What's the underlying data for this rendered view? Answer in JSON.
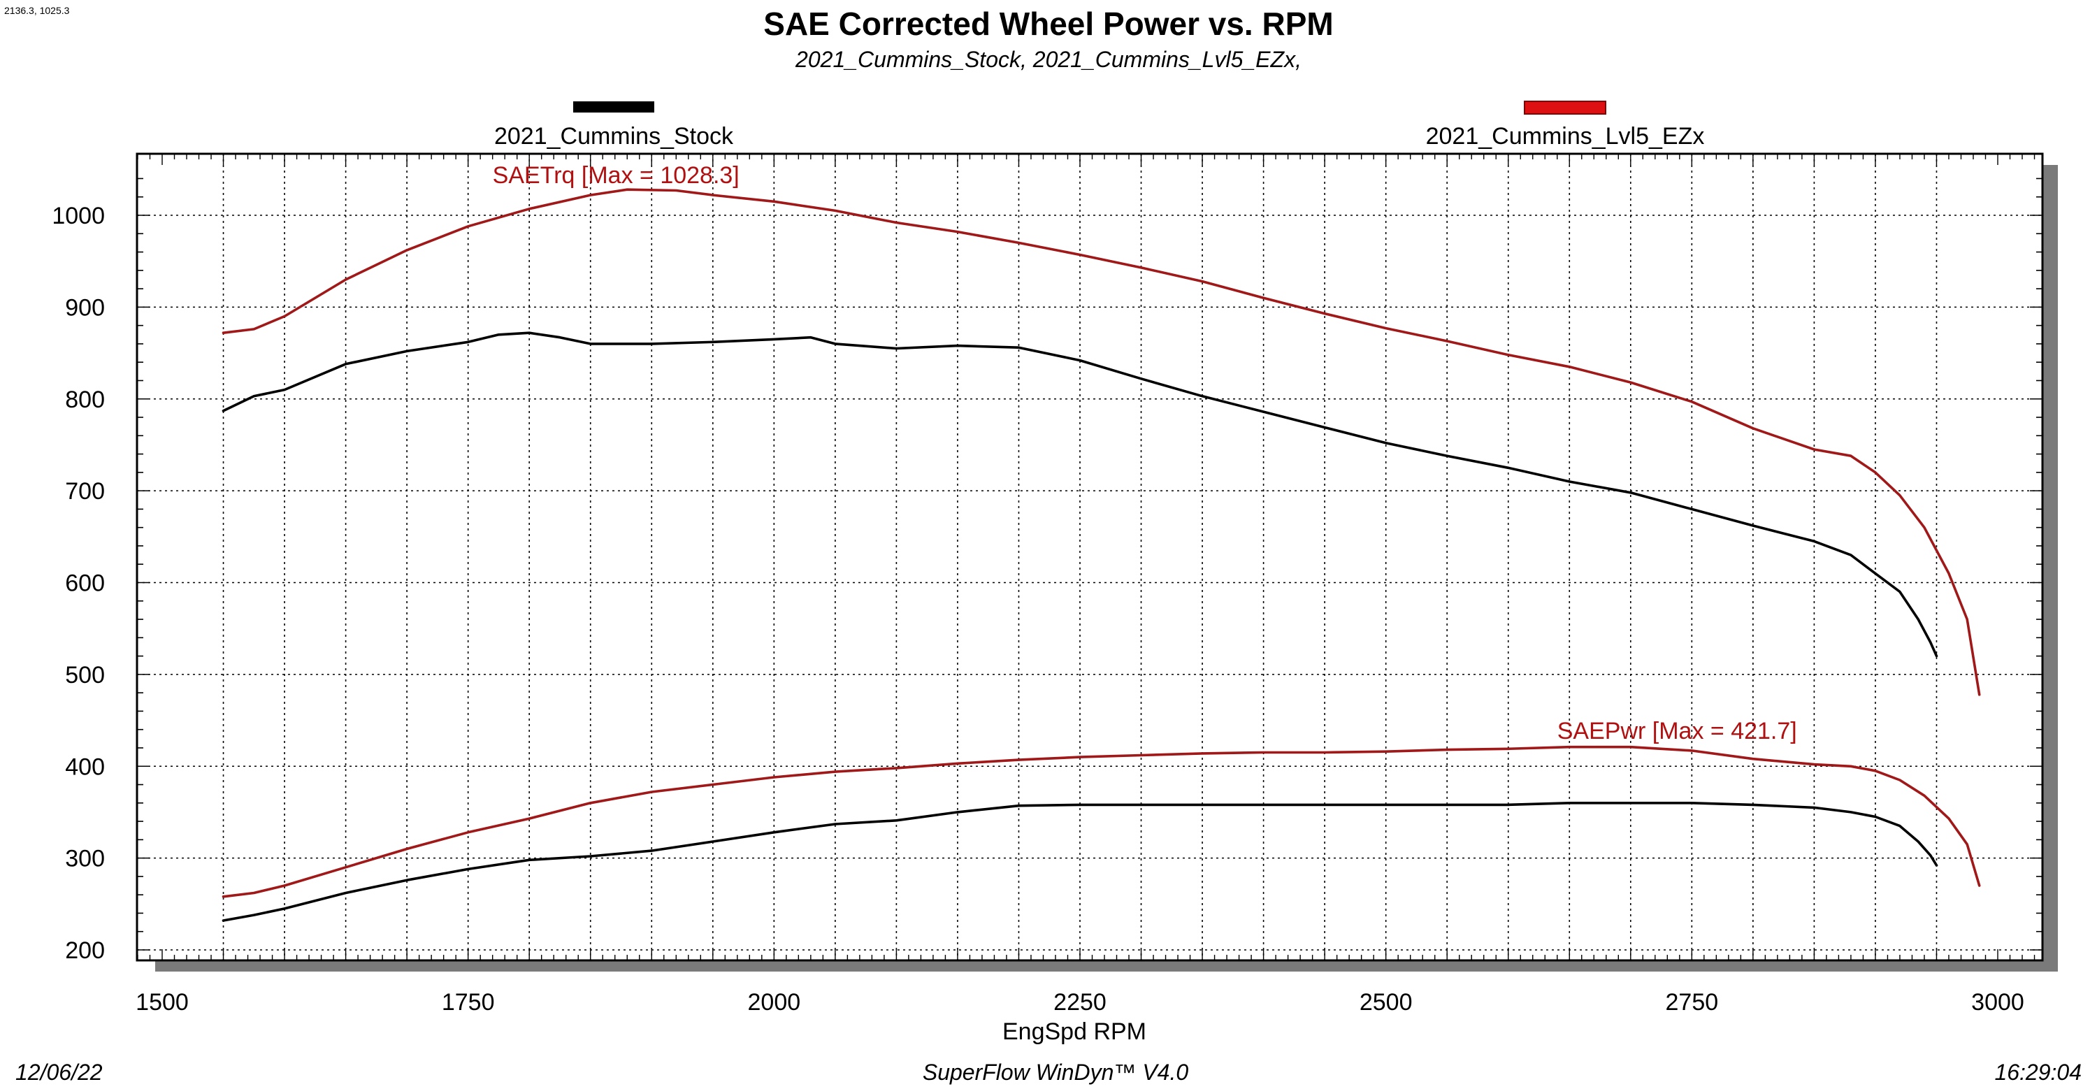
{
  "corner_readout": "2136.3, 1025.3",
  "footer": {
    "date": "12/06/22",
    "software": "SuperFlow WinDyn™ V4.0",
    "time": "16:29:04"
  },
  "chart_data": {
    "type": "line",
    "title": "SAE Corrected Wheel Power vs. RPM",
    "subtitle": "2021_Cummins_Stock, 2021_Cummins_Lvl5_EZx,",
    "xlabel": "EngSpd RPM",
    "ylabel": "",
    "xlim": [
      1500,
      3000
    ],
    "ylim": [
      200,
      1050
    ],
    "x_ticks": [
      1500,
      1750,
      2000,
      2250,
      2500,
      2750,
      3000
    ],
    "y_ticks": [
      200,
      300,
      400,
      500,
      600,
      700,
      800,
      900,
      1000
    ],
    "grid": true,
    "legend": [
      {
        "name": "2021_Cummins_Stock",
        "color": "#000000"
      },
      {
        "name": "2021_Cummins_Lvl5_EZx",
        "color": "#dd1111"
      }
    ],
    "annotations": [
      {
        "text": "SAETrq [Max = 1028.3]",
        "x": 1770,
        "y": 1035
      },
      {
        "text": "SAEPwr [Max = 421.7]",
        "x": 2640,
        "y": 430
      }
    ],
    "series": [
      {
        "name": "2021_Cummins_Lvl5_EZx SAETrq",
        "color": "#a01818",
        "x": [
          1550,
          1575,
          1600,
          1650,
          1700,
          1750,
          1800,
          1850,
          1880,
          1920,
          1950,
          2000,
          2050,
          2100,
          2150,
          2200,
          2250,
          2300,
          2350,
          2400,
          2450,
          2500,
          2550,
          2600,
          2650,
          2700,
          2750,
          2800,
          2850,
          2880,
          2900,
          2920,
          2940,
          2960,
          2975,
          2985
        ],
        "y": [
          872,
          876,
          890,
          930,
          962,
          988,
          1007,
          1022,
          1028,
          1027,
          1022,
          1015,
          1005,
          992,
          982,
          970,
          957,
          943,
          928,
          910,
          893,
          877,
          863,
          848,
          835,
          818,
          797,
          768,
          745,
          738,
          720,
          695,
          660,
          610,
          560,
          478
        ]
      },
      {
        "name": "2021_Cummins_Stock SAETrq",
        "color": "#000000",
        "x": [
          1550,
          1575,
          1600,
          1650,
          1700,
          1750,
          1775,
          1800,
          1825,
          1850,
          1900,
          1950,
          2000,
          2030,
          2050,
          2100,
          2150,
          2200,
          2250,
          2300,
          2350,
          2400,
          2450,
          2500,
          2550,
          2600,
          2650,
          2700,
          2750,
          2800,
          2850,
          2880,
          2900,
          2920,
          2935,
          2945,
          2950
        ],
        "y": [
          787,
          803,
          810,
          838,
          852,
          862,
          870,
          872,
          867,
          860,
          860,
          862,
          865,
          867,
          860,
          855,
          858,
          856,
          842,
          822,
          803,
          786,
          769,
          752,
          738,
          725,
          710,
          698,
          680,
          662,
          645,
          630,
          610,
          590,
          560,
          535,
          520
        ]
      },
      {
        "name": "2021_Cummins_Lvl5_EZx SAEPwr",
        "color": "#a01818",
        "x": [
          1550,
          1575,
          1600,
          1650,
          1700,
          1750,
          1800,
          1850,
          1900,
          1950,
          2000,
          2050,
          2100,
          2150,
          2200,
          2250,
          2300,
          2350,
          2400,
          2450,
          2500,
          2550,
          2600,
          2650,
          2700,
          2750,
          2800,
          2850,
          2880,
          2900,
          2920,
          2940,
          2960,
          2975,
          2985
        ],
        "y": [
          258,
          262,
          270,
          290,
          310,
          328,
          343,
          360,
          372,
          380,
          388,
          394,
          398,
          403,
          407,
          410,
          412,
          414,
          415,
          415,
          416,
          418,
          419,
          421,
          421,
          417,
          408,
          402,
          400,
          395,
          385,
          368,
          343,
          315,
          270
        ]
      },
      {
        "name": "2021_Cummins_Stock SAEPwr",
        "color": "#000000",
        "x": [
          1550,
          1575,
          1600,
          1650,
          1700,
          1750,
          1800,
          1850,
          1900,
          1950,
          2000,
          2050,
          2100,
          2150,
          2200,
          2250,
          2300,
          2350,
          2400,
          2450,
          2500,
          2550,
          2600,
          2650,
          2700,
          2750,
          2800,
          2850,
          2880,
          2900,
          2920,
          2935,
          2945,
          2950
        ],
        "y": [
          232,
          238,
          245,
          262,
          276,
          288,
          298,
          302,
          308,
          318,
          328,
          337,
          341,
          350,
          357,
          358,
          358,
          358,
          358,
          358,
          358,
          358,
          358,
          360,
          360,
          360,
          358,
          355,
          350,
          345,
          335,
          318,
          303,
          292
        ]
      }
    ]
  }
}
